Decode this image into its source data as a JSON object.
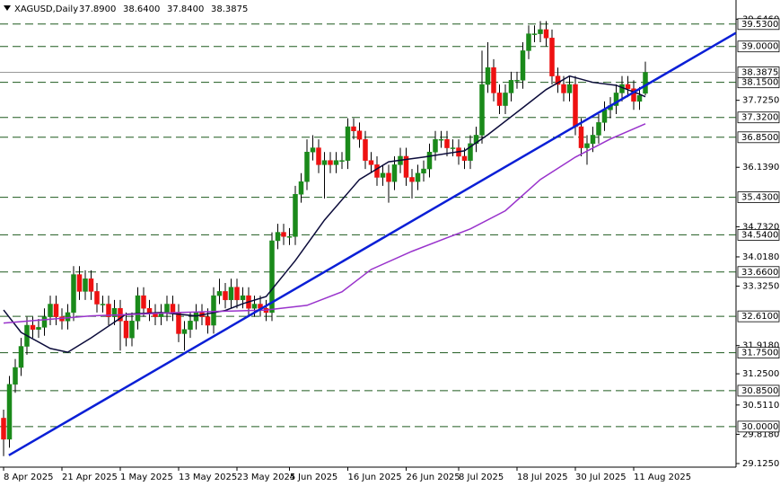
{
  "chart_data": {
    "type": "candlestick",
    "header": {
      "symbol": "XAGUSD,Daily",
      "open": "37.8900",
      "high": "38.6400",
      "low": "37.8400",
      "close": "38.3875"
    },
    "categories": [
      "8 Apr 2025",
      null,
      null,
      null,
      null,
      null,
      null,
      null,
      null,
      null,
      "21 Apr 2025",
      null,
      null,
      null,
      null,
      null,
      null,
      null,
      null,
      null,
      "1 May 2025",
      null,
      null,
      null,
      null,
      null,
      null,
      null,
      null,
      null,
      "13 May 2025",
      null,
      null,
      null,
      null,
      null,
      null,
      null,
      null,
      null,
      "23 May 2025",
      null,
      null,
      null,
      null,
      null,
      null,
      null,
      null,
      "4 Jun 2025",
      null,
      null,
      null,
      null,
      null,
      null,
      null,
      null,
      null,
      "16 Jun 2025",
      null,
      null,
      null,
      null,
      null,
      null,
      null,
      null,
      null,
      "26 Jun 2025",
      null,
      null,
      null,
      null,
      null,
      null,
      null,
      null,
      "8 Jul 2025",
      null,
      null,
      null,
      null,
      null,
      null,
      null,
      null,
      null,
      "18 Jul 2025",
      null,
      null,
      null,
      null,
      null,
      null,
      null,
      null,
      null,
      "30 Jul 2025",
      null,
      null,
      null,
      null,
      null,
      null,
      null,
      null,
      null,
      "11 Aug 2025",
      null,
      null
    ],
    "open": [
      30.2,
      29.7,
      31.0,
      31.4,
      31.9,
      32.4,
      32.3,
      32.35,
      32.6,
      32.9,
      32.6,
      32.5,
      32.7,
      33.6,
      33.2,
      33.5,
      33.2,
      32.9,
      32.9,
      32.6,
      32.8,
      32.5,
      32.1,
      32.5,
      33.1,
      32.8,
      32.7,
      32.6,
      32.7,
      32.9,
      32.7,
      32.2,
      32.3,
      32.5,
      32.7,
      32.6,
      32.4,
      33.1,
      33.2,
      33.0,
      33.3,
      33.0,
      33.1,
      32.8,
      32.9,
      32.8,
      32.7,
      34.4,
      34.6,
      34.5,
      34.5,
      35.5,
      35.8,
      36.5,
      36.6,
      36.2,
      36.3,
      36.2,
      36.3,
      36.3,
      37.1,
      37.0,
      36.8,
      36.3,
      36.2,
      35.9,
      36.0,
      35.8,
      36.2,
      36.4,
      35.9,
      35.8,
      36.0,
      36.1,
      36.5,
      36.8,
      36.8,
      36.6,
      36.6,
      36.4,
      36.3,
      36.7,
      36.9,
      38.1,
      38.5,
      37.9,
      37.6,
      37.9,
      38.2,
      38.2,
      38.9,
      39.3,
      39.3,
      39.4,
      39.2,
      38.3,
      38.1,
      37.9,
      38.1,
      37.1,
      36.6,
      36.7,
      36.9,
      37.2,
      37.5,
      37.6,
      37.9,
      38.1,
      38.0,
      37.7,
      37.89
    ],
    "high": [
      30.4,
      31.2,
      31.6,
      32.1,
      32.6,
      32.6,
      32.55,
      32.8,
      33.1,
      33.1,
      32.8,
      32.9,
      33.8,
      33.8,
      33.7,
      33.7,
      33.4,
      33.1,
      33.1,
      33.0,
      33.0,
      32.7,
      32.7,
      33.3,
      33.3,
      33.0,
      32.9,
      32.9,
      33.1,
      33.1,
      32.9,
      32.5,
      32.7,
      32.9,
      32.9,
      32.8,
      33.3,
      33.5,
      33.4,
      33.5,
      33.5,
      33.3,
      33.3,
      33.1,
      33.1,
      33.0,
      34.6,
      34.8,
      34.8,
      34.7,
      35.7,
      36.0,
      36.8,
      36.9,
      36.8,
      36.5,
      36.5,
      36.5,
      36.5,
      37.3,
      37.3,
      37.2,
      37.0,
      36.5,
      36.4,
      36.2,
      36.2,
      36.4,
      36.6,
      36.6,
      36.1,
      36.2,
      36.3,
      36.7,
      37.0,
      37.0,
      37.0,
      36.8,
      36.8,
      36.6,
      36.9,
      37.1,
      38.9,
      39.1,
      38.7,
      38.1,
      38.1,
      38.4,
      38.4,
      39.1,
      39.5,
      39.5,
      39.6,
      39.6,
      39.4,
      38.5,
      38.3,
      38.3,
      38.3,
      37.3,
      36.9,
      37.1,
      37.4,
      37.7,
      37.8,
      38.1,
      38.3,
      38.3,
      38.2,
      38.04,
      38.64
    ],
    "low": [
      29.3,
      29.5,
      30.8,
      31.2,
      31.7,
      32.1,
      32.1,
      32.15,
      32.4,
      32.4,
      32.3,
      32.3,
      32.5,
      33.0,
      33.0,
      33.0,
      32.7,
      32.7,
      32.4,
      32.4,
      31.8,
      31.9,
      31.9,
      32.3,
      32.6,
      32.5,
      32.4,
      32.4,
      32.5,
      32.5,
      32.0,
      31.8,
      32.1,
      32.3,
      32.4,
      32.2,
      32.2,
      32.9,
      32.8,
      32.8,
      32.8,
      32.8,
      32.6,
      32.6,
      32.6,
      32.5,
      32.5,
      34.2,
      34.3,
      34.3,
      34.3,
      35.3,
      35.6,
      36.3,
      36.0,
      35.4,
      36.0,
      36.0,
      36.1,
      36.1,
      36.8,
      36.6,
      36.1,
      36.0,
      35.7,
      35.7,
      35.3,
      35.6,
      36.0,
      35.7,
      35.4,
      35.6,
      35.8,
      35.9,
      36.3,
      36.6,
      36.4,
      36.4,
      36.2,
      36.1,
      36.1,
      36.5,
      36.7,
      37.9,
      37.7,
      37.4,
      37.4,
      37.7,
      38.0,
      38.0,
      38.7,
      39.1,
      39.1,
      39.0,
      38.1,
      37.9,
      37.7,
      37.7,
      36.9,
      36.4,
      36.2,
      36.5,
      36.7,
      37.0,
      37.3,
      37.4,
      37.7,
      37.8,
      37.5,
      37.5,
      37.84
    ],
    "close": [
      29.7,
      31.0,
      31.4,
      31.9,
      32.4,
      32.3,
      32.35,
      32.6,
      32.9,
      32.6,
      32.5,
      32.7,
      33.6,
      33.2,
      33.5,
      33.2,
      32.9,
      32.9,
      32.6,
      32.8,
      32.5,
      32.1,
      32.5,
      33.1,
      32.8,
      32.7,
      32.6,
      32.7,
      32.9,
      32.7,
      32.2,
      32.3,
      32.5,
      32.7,
      32.6,
      32.4,
      33.1,
      33.2,
      33.0,
      33.3,
      33.0,
      33.1,
      32.8,
      32.9,
      32.8,
      32.7,
      34.4,
      34.6,
      34.5,
      34.5,
      35.5,
      35.8,
      36.5,
      36.6,
      36.2,
      36.3,
      36.2,
      36.3,
      36.3,
      37.1,
      37.0,
      36.8,
      36.3,
      36.2,
      35.9,
      36.0,
      35.8,
      36.2,
      36.4,
      35.9,
      35.8,
      36.0,
      36.1,
      36.5,
      36.8,
      36.8,
      36.6,
      36.6,
      36.4,
      36.3,
      36.7,
      36.9,
      38.1,
      38.5,
      37.9,
      37.6,
      37.9,
      38.2,
      38.2,
      38.9,
      39.3,
      39.3,
      39.4,
      39.2,
      38.3,
      38.1,
      37.9,
      38.1,
      37.1,
      36.6,
      36.7,
      36.9,
      37.2,
      37.5,
      37.6,
      37.9,
      38.1,
      38.0,
      37.7,
      37.84,
      38.3875
    ],
    "up_color": "#1a8a1a",
    "down_color": "#ee1111",
    "ylim": [
      29.04,
      40.1
    ],
    "yticks": [
      {
        "value": 39.646,
        "label": "39.6460"
      },
      {
        "value": 37.725,
        "label": "37.7250"
      },
      {
        "value": 36.139,
        "label": "36.1390"
      },
      {
        "value": 34.732,
        "label": "34.7320"
      },
      {
        "value": 34.018,
        "label": "34.0180"
      },
      {
        "value": 33.325,
        "label": "33.3250"
      },
      {
        "value": 31.918,
        "label": "31.9180"
      },
      {
        "value": 31.25,
        "label": "31.2500"
      },
      {
        "value": 30.511,
        "label": "30.5110"
      },
      {
        "value": 29.818,
        "label": "29.8180"
      },
      {
        "value": 29.125,
        "label": "29.1250"
      }
    ],
    "levels": {
      "color": "#1f5a1f",
      "values": [
        {
          "value": 39.53,
          "label": "39.5300"
        },
        {
          "value": 39.0,
          "label": "39.0000"
        },
        {
          "value": 38.15,
          "label": "38.1500"
        },
        {
          "value": 37.32,
          "label": "37.3200"
        },
        {
          "value": 36.85,
          "label": "36.8500"
        },
        {
          "value": 35.43,
          "label": "35.4300"
        },
        {
          "value": 34.54,
          "label": "34.5400"
        },
        {
          "value": 33.66,
          "label": "33.6600"
        },
        {
          "value": 32.61,
          "label": "32.6100"
        },
        {
          "value": 31.75,
          "label": "31.7500"
        },
        {
          "value": 30.85,
          "label": "30.8500"
        },
        {
          "value": 30.0,
          "label": "30.0000"
        }
      ]
    },
    "current_price": {
      "value": 38.3875,
      "label": "38.3875",
      "color": "#999999"
    },
    "moving_averages": [
      {
        "color": "#0b0b3a",
        "x": [
          0,
          3,
          8,
          11,
          15,
          21,
          27,
          33,
          38,
          41,
          45,
          50,
          55,
          61,
          66,
          72,
          79,
          83,
          89,
          93,
          97,
          101,
          105,
          109,
          110
        ],
        "values": [
          32.76,
          32.23,
          31.85,
          31.76,
          32.1,
          32.66,
          32.7,
          32.62,
          32.75,
          32.91,
          33.08,
          33.93,
          34.89,
          35.85,
          36.27,
          36.38,
          36.53,
          36.91,
          37.55,
          37.98,
          38.3,
          38.15,
          38.08,
          37.87,
          37.81
        ]
      },
      {
        "color": "#9933cc",
        "x": [
          0,
          15,
          30,
          45,
          52,
          58,
          63,
          70,
          76,
          80,
          86,
          92,
          98,
          104,
          110
        ],
        "values": [
          32.45,
          32.62,
          32.7,
          32.76,
          32.87,
          33.19,
          33.72,
          34.15,
          34.47,
          34.68,
          35.11,
          35.85,
          36.38,
          36.81,
          37.17
        ]
      }
    ],
    "trendline": {
      "color": "#0a1fd6",
      "x": [
        0.9,
        125.5
      ],
      "values": [
        29.32,
        39.32
      ]
    }
  }
}
